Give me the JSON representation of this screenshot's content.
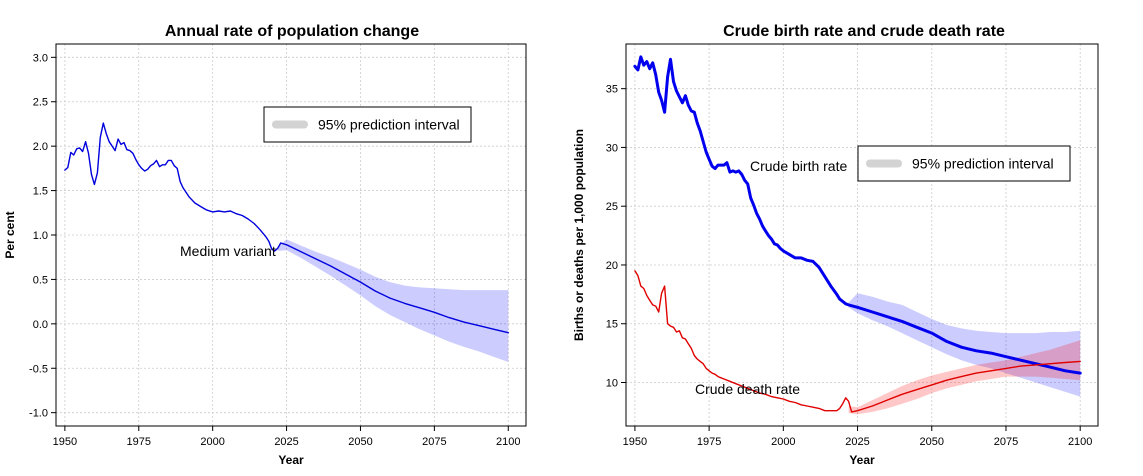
{
  "chart_data": [
    {
      "type": "line",
      "title": "Annual rate of population change",
      "xlabel": "Year",
      "ylabel": "Per cent",
      "xlim": [
        1947,
        2106
      ],
      "ylim": [
        -1.15,
        3.15
      ],
      "x_ticks": [
        1950,
        1975,
        2000,
        2025,
        2050,
        2075,
        2100
      ],
      "y_ticks": [
        -1.0,
        -0.5,
        0.0,
        0.5,
        1.0,
        1.5,
        2.0,
        2.5,
        3.0
      ],
      "y_tick_labels": [
        "-1.0",
        "-0.5",
        "0.0",
        "0.5",
        "1.0",
        "1.5",
        "2.0",
        "2.5",
        "3.0"
      ],
      "grid": true,
      "legend": {
        "label": "95% prediction interval",
        "placement": "top-right"
      },
      "annotations": [
        {
          "text": "Medium variant",
          "x": 1986,
          "y": 0.8
        }
      ],
      "series": [
        {
          "color": "#0000dd",
          "style": "line",
          "x": [
            1950,
            1951,
            1952,
            1953,
            1954,
            1955,
            1956,
            1957,
            1958,
            1959,
            1960,
            1961,
            1962,
            1963,
            1964,
            1965,
            1966,
            1967,
            1968,
            1969,
            1970,
            1971,
            1972,
            1973,
            1974,
            1975,
            1976,
            1977,
            1978,
            1979,
            1980,
            1981,
            1982,
            1983,
            1984,
            1985,
            1986,
            1987,
            1988,
            1989,
            1990,
            1992,
            1994,
            1996,
            1998,
            2000,
            2002,
            2004,
            2006,
            2008,
            2010,
            2012,
            2014,
            2016,
            2017,
            2018,
            2019,
            2020,
            2021,
            2022,
            2023,
            2025,
            2030,
            2035,
            2040,
            2045,
            2050,
            2055,
            2060,
            2065,
            2070,
            2075,
            2080,
            2085,
            2090,
            2095,
            2100
          ],
          "y": [
            1.73,
            1.76,
            1.93,
            1.9,
            1.97,
            1.98,
            1.94,
            2.05,
            1.92,
            1.68,
            1.57,
            1.7,
            2.1,
            2.26,
            2.14,
            2.05,
            2.0,
            1.95,
            2.08,
            2.02,
            2.04,
            1.96,
            1.95,
            1.92,
            1.85,
            1.79,
            1.75,
            1.72,
            1.74,
            1.78,
            1.8,
            1.84,
            1.77,
            1.79,
            1.79,
            1.84,
            1.84,
            1.78,
            1.75,
            1.6,
            1.53,
            1.43,
            1.36,
            1.32,
            1.28,
            1.26,
            1.27,
            1.26,
            1.27,
            1.24,
            1.22,
            1.18,
            1.13,
            1.06,
            1.02,
            0.98,
            0.93,
            0.84,
            0.82,
            0.85,
            0.91,
            0.89,
            0.81,
            0.73,
            0.65,
            0.56,
            0.47,
            0.37,
            0.29,
            0.23,
            0.18,
            0.13,
            0.07,
            0.02,
            -0.02,
            -0.06,
            -0.1
          ]
        },
        {
          "color": "#0000ff",
          "style": "band",
          "x": [
            2022,
            2025,
            2030,
            2035,
            2040,
            2045,
            2050,
            2055,
            2060,
            2065,
            2070,
            2075,
            2080,
            2085,
            2090,
            2095,
            2100
          ],
          "lower": [
            0.82,
            0.83,
            0.74,
            0.64,
            0.54,
            0.43,
            0.32,
            0.2,
            0.1,
            0.02,
            -0.06,
            -0.13,
            -0.2,
            -0.26,
            -0.31,
            -0.37,
            -0.43
          ],
          "upper": [
            0.87,
            0.95,
            0.88,
            0.81,
            0.75,
            0.68,
            0.61,
            0.53,
            0.47,
            0.43,
            0.41,
            0.4,
            0.39,
            0.38,
            0.38,
            0.38,
            0.38
          ]
        }
      ]
    },
    {
      "type": "line",
      "title": "Crude birth rate and crude death rate",
      "xlabel": "Year",
      "ylabel": "Births or deaths per 1,000 population",
      "xlim": [
        1947,
        2106
      ],
      "ylim": [
        6.3,
        38.8
      ],
      "x_ticks": [
        1950,
        1975,
        2000,
        2025,
        2050,
        2075,
        2100
      ],
      "y_ticks": [
        10,
        15,
        20,
        25,
        30,
        35
      ],
      "y_tick_labels": [
        "10",
        "15",
        "20",
        "25",
        "30",
        "35"
      ],
      "grid": true,
      "legend": {
        "label": "95% prediction interval",
        "placement": "right"
      },
      "annotations": [
        {
          "text": "Crude birth rate",
          "x": 1985.5,
          "y": 28.2
        },
        {
          "text": "Crude death rate",
          "x": 1968.5,
          "y": 8.9
        }
      ],
      "series": [
        {
          "name": "Crude birth rate",
          "color": "#0000ee",
          "style": "thick-line",
          "x": [
            1950,
            1951,
            1952,
            1953,
            1954,
            1955,
            1956,
            1957,
            1958,
            1959,
            1960,
            1961,
            1962,
            1963,
            1964,
            1965,
            1966,
            1967,
            1968,
            1969,
            1970,
            1971,
            1972,
            1973,
            1974,
            1975,
            1976,
            1977,
            1978,
            1979,
            1980,
            1981,
            1982,
            1983,
            1984,
            1985,
            1986,
            1987,
            1988,
            1989,
            1990,
            1991,
            1992,
            1993,
            1994,
            1995,
            1996,
            1997,
            1998,
            1999,
            2000,
            2002,
            2004,
            2006,
            2008,
            2010,
            2012,
            2014,
            2016,
            2018,
            2019,
            2020,
            2021,
            2022,
            2025,
            2030,
            2035,
            2040,
            2045,
            2050,
            2055,
            2060,
            2065,
            2070,
            2075,
            2080,
            2085,
            2090,
            2095,
            2100
          ],
          "y": [
            36.9,
            36.6,
            37.7,
            37.0,
            37.3,
            36.7,
            37.2,
            36.2,
            34.7,
            34.0,
            33.0,
            36.0,
            37.5,
            35.6,
            34.8,
            34.3,
            33.8,
            34.4,
            33.6,
            33.1,
            33.0,
            32.1,
            31.4,
            30.5,
            29.6,
            29.0,
            28.4,
            28.2,
            28.5,
            28.5,
            28.5,
            28.7,
            27.9,
            28.0,
            27.9,
            28.0,
            27.7,
            27.2,
            26.9,
            25.7,
            25.1,
            24.4,
            23.9,
            23.3,
            22.9,
            22.5,
            22.2,
            21.8,
            21.7,
            21.4,
            21.2,
            20.9,
            20.6,
            20.6,
            20.4,
            20.3,
            19.8,
            19.0,
            18.2,
            17.5,
            17.1,
            16.9,
            16.7,
            16.6,
            16.4,
            16.0,
            15.6,
            15.2,
            14.7,
            14.2,
            13.5,
            13.0,
            12.7,
            12.5,
            12.2,
            11.9,
            11.6,
            11.3,
            11.0,
            10.8
          ]
        },
        {
          "name": "Crude death rate",
          "color": "#e00000",
          "style": "line",
          "x": [
            1950,
            1951,
            1952,
            1953,
            1954,
            1955,
            1956,
            1957,
            1958,
            1959,
            1960,
            1961,
            1962,
            1963,
            1964,
            1965,
            1966,
            1967,
            1968,
            1969,
            1970,
            1971,
            1972,
            1973,
            1974,
            1975,
            1976,
            1977,
            1978,
            1979,
            1980,
            1982,
            1984,
            1986,
            1988,
            1990,
            1992,
            1994,
            1996,
            1998,
            2000,
            2002,
            2004,
            2006,
            2008,
            2010,
            2012,
            2014,
            2016,
            2018,
            2019,
            2020,
            2021,
            2022,
            2023,
            2025,
            2030,
            2035,
            2040,
            2045,
            2050,
            2055,
            2060,
            2065,
            2070,
            2075,
            2080,
            2085,
            2090,
            2095,
            2100
          ],
          "y": [
            19.5,
            19.1,
            18.2,
            18.0,
            17.4,
            17.0,
            16.6,
            16.5,
            16.0,
            17.6,
            18.2,
            15.0,
            14.8,
            14.7,
            14.3,
            14.4,
            13.8,
            13.7,
            13.3,
            12.9,
            12.3,
            12.0,
            11.8,
            11.6,
            11.2,
            11.0,
            10.8,
            10.7,
            10.5,
            10.4,
            10.3,
            10.1,
            9.9,
            9.7,
            9.5,
            9.3,
            9.1,
            9.0,
            8.8,
            8.7,
            8.6,
            8.4,
            8.3,
            8.1,
            8.0,
            7.9,
            7.8,
            7.6,
            7.6,
            7.6,
            7.8,
            8.2,
            8.7,
            8.4,
            7.5,
            7.6,
            8.0,
            8.5,
            9.0,
            9.4,
            9.8,
            10.2,
            10.5,
            10.8,
            11.0,
            11.2,
            11.4,
            11.5,
            11.6,
            11.7,
            11.8
          ]
        },
        {
          "name": "Crude birth rate interval",
          "color": "#0000ff",
          "style": "band",
          "x": [
            2022,
            2025,
            2030,
            2035,
            2040,
            2045,
            2050,
            2055,
            2060,
            2065,
            2070,
            2075,
            2080,
            2085,
            2090,
            2095,
            2100
          ],
          "lower": [
            16.4,
            15.9,
            15.3,
            14.8,
            14.2,
            13.6,
            13.0,
            12.4,
            11.9,
            11.5,
            11.2,
            10.8,
            10.4,
            10.0,
            9.6,
            9.2,
            8.8
          ],
          "upper": [
            16.8,
            17.6,
            17.3,
            16.9,
            16.6,
            16.0,
            15.4,
            14.9,
            14.6,
            14.4,
            14.3,
            14.2,
            14.2,
            14.2,
            14.3,
            14.3,
            14.4
          ]
        },
        {
          "name": "Crude death rate interval",
          "color": "#ff0000",
          "style": "band",
          "x": [
            2022,
            2025,
            2030,
            2035,
            2040,
            2045,
            2050,
            2055,
            2060,
            2065,
            2070,
            2075,
            2080,
            2085,
            2090,
            2095,
            2100
          ],
          "lower": [
            7.4,
            7.3,
            7.5,
            7.8,
            8.2,
            8.6,
            9.1,
            9.5,
            9.8,
            10.1,
            10.3,
            10.5,
            10.5,
            10.5,
            10.4,
            10.3,
            10.2
          ],
          "upper": [
            8.0,
            7.9,
            8.5,
            9.1,
            9.7,
            10.2,
            10.6,
            10.9,
            11.2,
            11.5,
            11.7,
            11.9,
            12.2,
            12.5,
            12.8,
            13.2,
            13.6
          ]
        }
      ]
    }
  ]
}
